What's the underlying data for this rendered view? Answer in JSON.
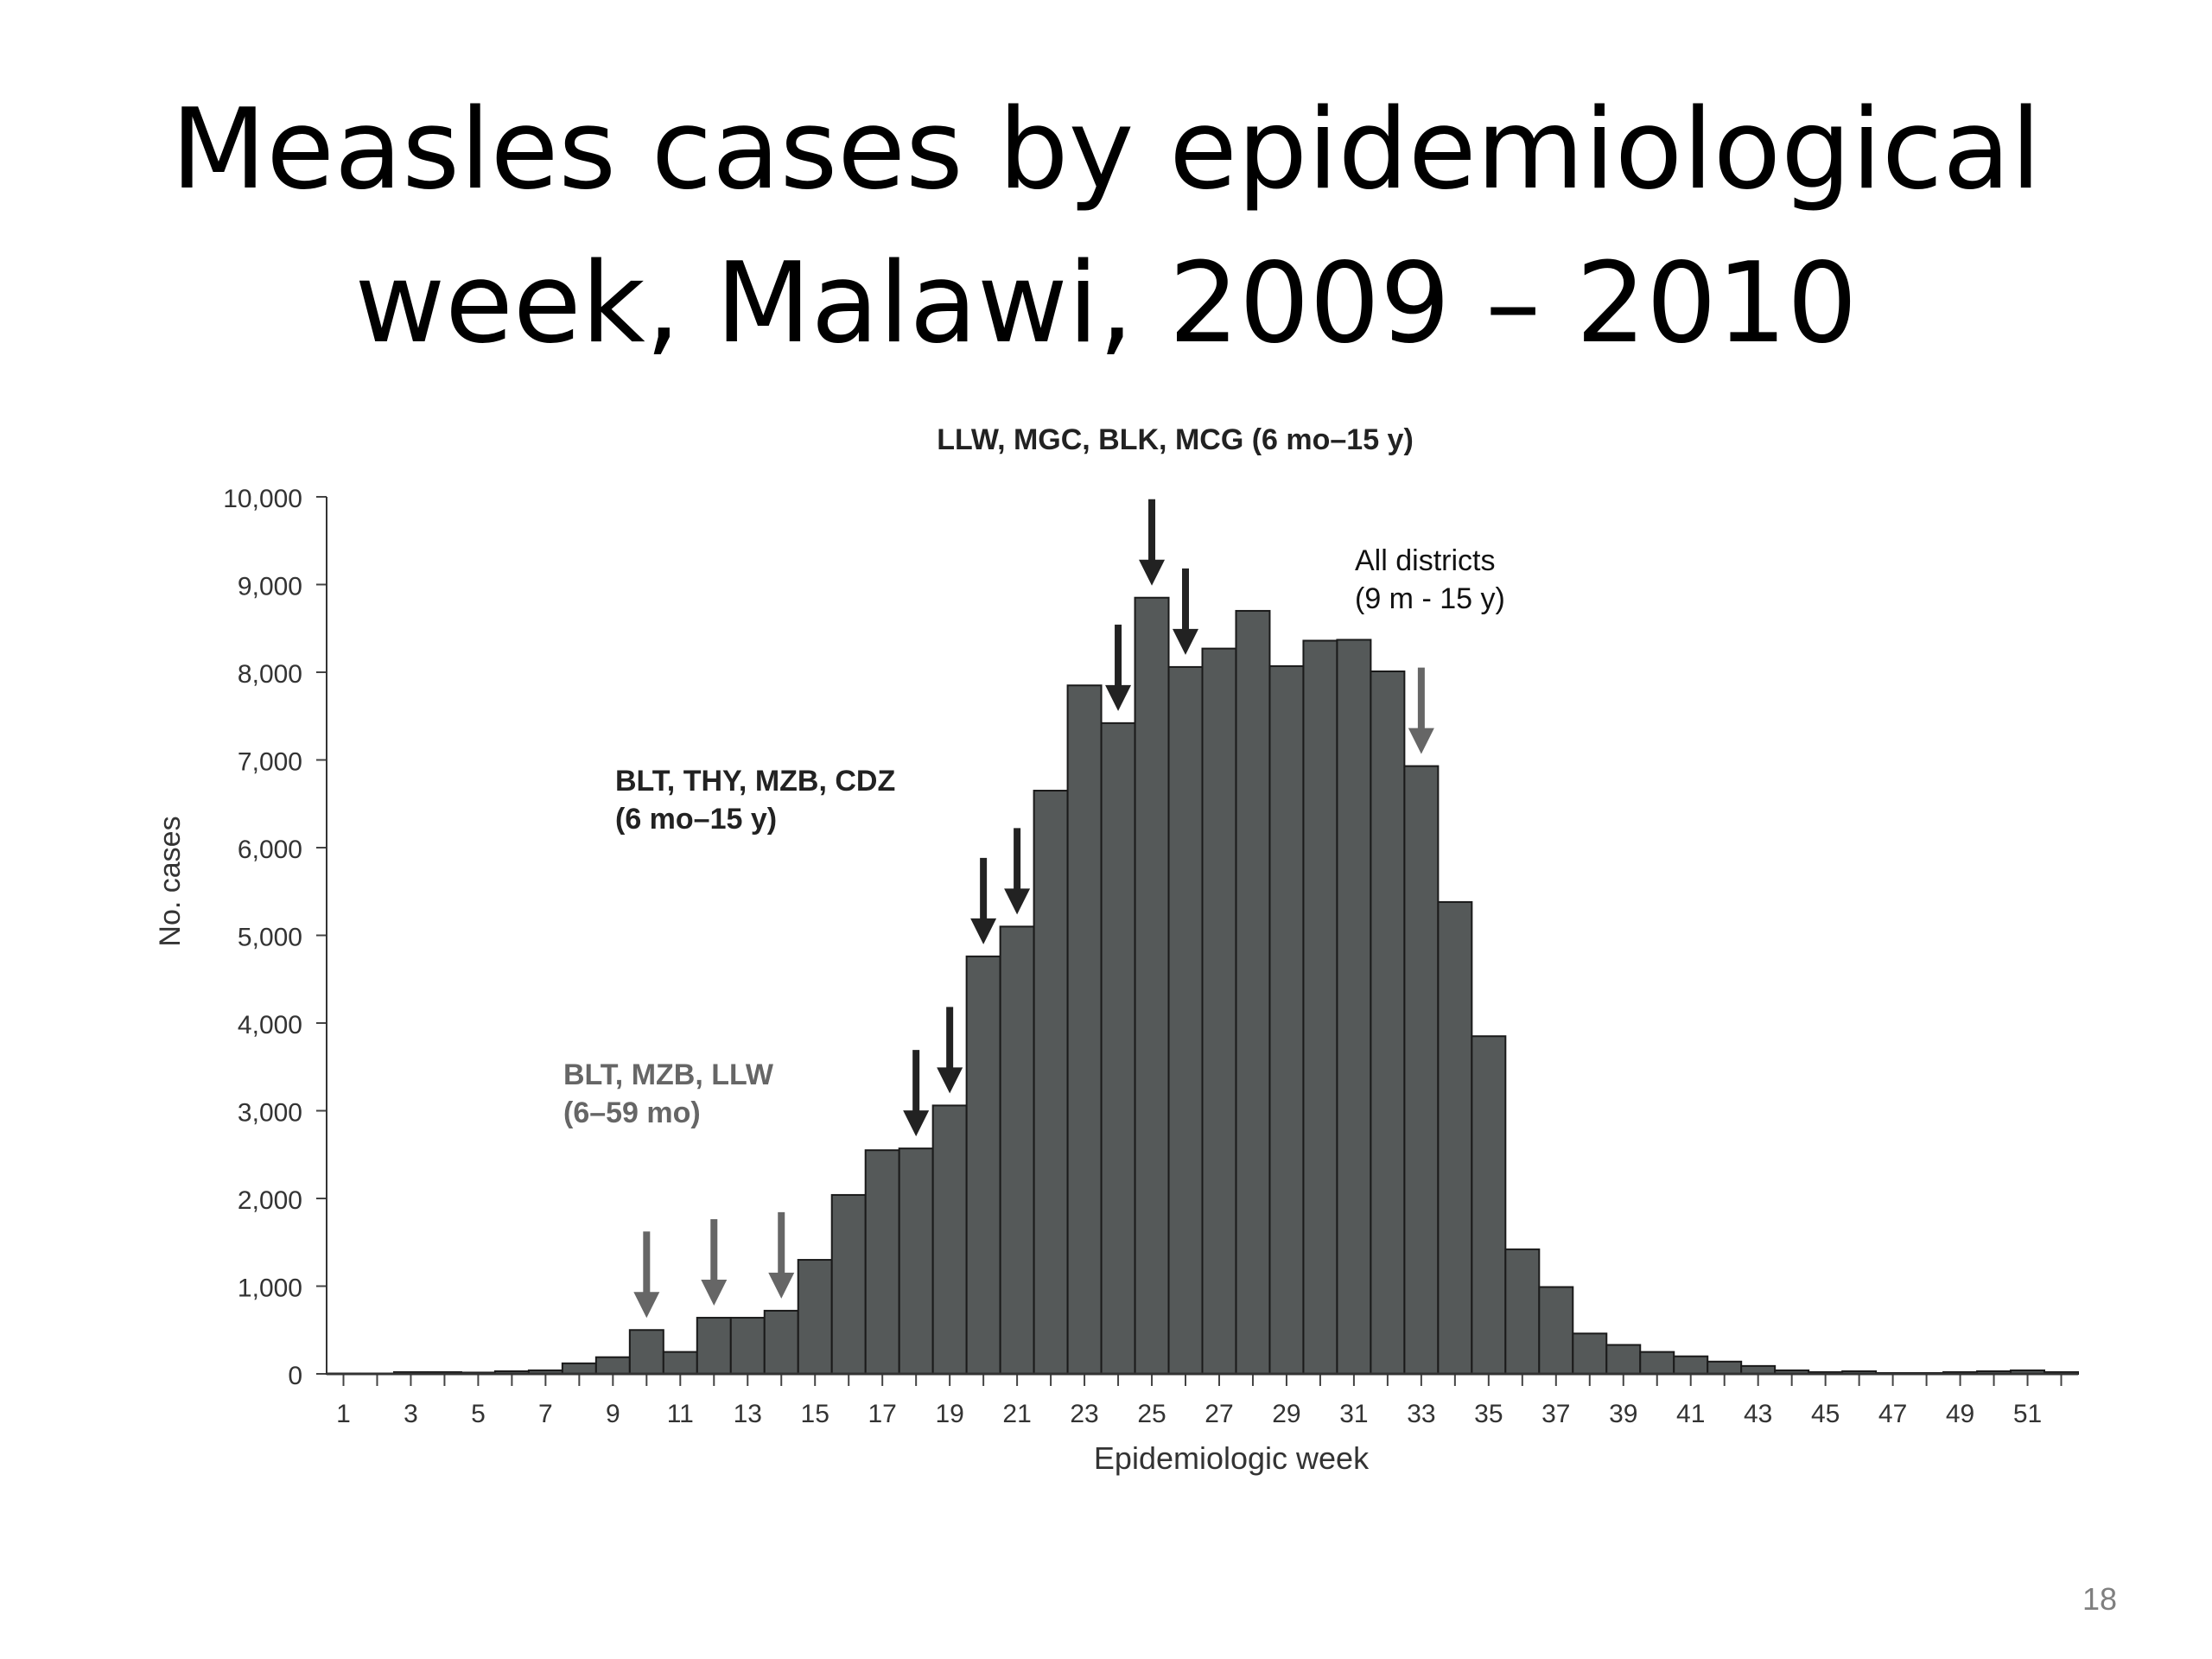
{
  "slide": {
    "title_line1": "Measles cases by epidemiological",
    "title_line2": "week, Malawi, 2009 – 2010",
    "page_number": "18"
  },
  "chart_data": {
    "type": "bar",
    "title": "",
    "xlabel": "Epidemiologic week",
    "ylabel": "No. cases",
    "ylim": [
      0,
      10000
    ],
    "yticks": [
      {
        "value": 0,
        "label": "0"
      },
      {
        "value": 1000,
        "label": "1,000"
      },
      {
        "value": 2000,
        "label": "2,000"
      },
      {
        "value": 3000,
        "label": "3,000"
      },
      {
        "value": 4000,
        "label": "4,000"
      },
      {
        "value": 5000,
        "label": "5,000"
      },
      {
        "value": 6000,
        "label": "6,000"
      },
      {
        "value": 7000,
        "label": "7,000"
      },
      {
        "value": 8000,
        "label": "8,000"
      },
      {
        "value": 9000,
        "label": "9,000"
      },
      {
        "value": 10000,
        "label": "10,000"
      }
    ],
    "xtick_labels": [
      "1",
      "3",
      "5",
      "7",
      "9",
      "11",
      "13",
      "15",
      "17",
      "19",
      "21",
      "23",
      "25",
      "27",
      "29",
      "31",
      "33",
      "35",
      "37",
      "39",
      "41",
      "43",
      "45",
      "47",
      "49",
      "51"
    ],
    "weeks": [
      1,
      2,
      3,
      4,
      5,
      6,
      7,
      8,
      9,
      10,
      11,
      12,
      13,
      14,
      15,
      16,
      17,
      18,
      19,
      20,
      21,
      22,
      23,
      24,
      25,
      26,
      27,
      28,
      29,
      30,
      31,
      32,
      33,
      34,
      35,
      36,
      37,
      38,
      39,
      40,
      41,
      42,
      43,
      44,
      45,
      46,
      47,
      48,
      49,
      50,
      51,
      52
    ],
    "values": [
      5,
      5,
      20,
      20,
      15,
      30,
      40,
      120,
      190,
      500,
      250,
      640,
      640,
      720,
      1300,
      2040,
      2550,
      2570,
      3060,
      4760,
      5100,
      6650,
      7850,
      7420,
      8850,
      8060,
      8270,
      8700,
      8070,
      8360,
      8370,
      8010,
      6930,
      5380,
      3850,
      1420,
      990,
      460,
      330,
      250,
      200,
      140,
      90,
      40,
      20,
      30,
      10,
      10,
      20,
      30,
      40,
      20
    ],
    "bar_color": "#555959",
    "annotations": [
      {
        "line1": "BLT, MZB, LLW",
        "line2": "(6–59 mo)",
        "color": "#666666",
        "arrows_at_weeks": [
          10,
          12,
          14
        ],
        "arrow_color": "#666666"
      },
      {
        "line1": "BLT, THY, MZB, CDZ",
        "line2": "(6 mo–15 y)",
        "color": "#222222",
        "arrows_at_weeks": [
          18,
          19,
          20,
          21
        ],
        "arrow_color": "#222222"
      },
      {
        "line1": "LLW, MGC, BLK, MCG (6 mo–15 y)",
        "line2": "",
        "color": "#222222",
        "arrows_at_weeks": [
          24,
          25,
          26
        ],
        "arrow_color": "#222222"
      },
      {
        "line1": "All districts",
        "line2": "(9 m - 15 y)",
        "color": "#111111",
        "arrows_at_weeks": [
          33
        ],
        "arrow_color": "#666666"
      }
    ]
  }
}
